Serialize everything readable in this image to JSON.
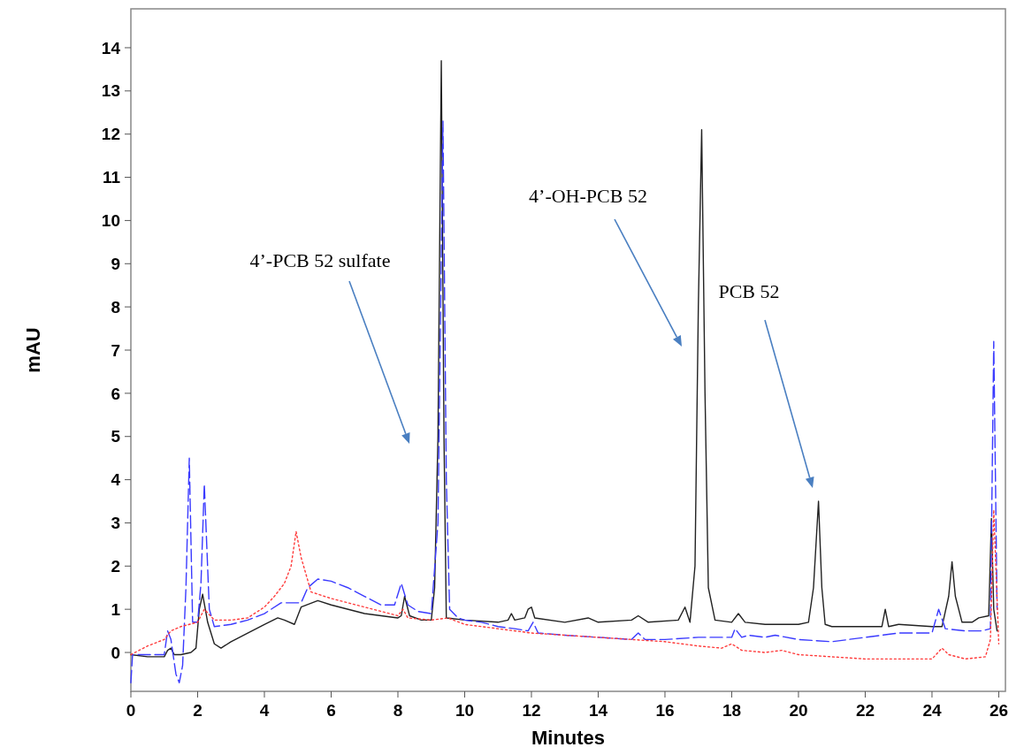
{
  "chart_data": {
    "type": "line",
    "xlabel": "Minutes",
    "ylabel": "mAU",
    "xlim": [
      0,
      26.2
    ],
    "ylim": [
      -0.9,
      14.9
    ],
    "xticks": [
      0,
      2,
      4,
      6,
      8,
      10,
      12,
      14,
      16,
      18,
      20,
      22,
      24,
      26
    ],
    "yticks": [
      0,
      1,
      2,
      3,
      4,
      5,
      6,
      7,
      8,
      9,
      10,
      11,
      12,
      13,
      14
    ],
    "grid": false,
    "annotations": [
      "4’-PCB 52 sulfate",
      "4’-OH-PCB 52",
      "PCB 52"
    ],
    "series": [
      {
        "color": "#222222",
        "line_style": "solid",
        "x": [
          0,
          0.5,
          1.0,
          1.1,
          1.2,
          1.3,
          1.5,
          1.8,
          1.95,
          2.05,
          2.15,
          2.3,
          2.5,
          2.7,
          3.0,
          3.5,
          4.0,
          4.4,
          4.6,
          4.9,
          5.1,
          5.6,
          6.0,
          7,
          8,
          8.1,
          8.2,
          8.35,
          8.7,
          9.0,
          9.1,
          9.2,
          9.3,
          9.38,
          9.45,
          10,
          11,
          11.3,
          11.4,
          11.5,
          11.8,
          11.9,
          12.0,
          12.1,
          13,
          13.7,
          14,
          15,
          15.2,
          15.5,
          16.4,
          16.6,
          16.75,
          16.9,
          17.0,
          17.1,
          17.2,
          17.3,
          17.5,
          18,
          18.2,
          18.4,
          19,
          20,
          20.3,
          20.45,
          20.6,
          20.7,
          20.8,
          21,
          22,
          22.5,
          22.6,
          22.7,
          23,
          24,
          24.3,
          24.5,
          24.6,
          24.7,
          24.9,
          25.2,
          25.4,
          25.7,
          25.78,
          25.85,
          25.95
        ],
        "values": [
          -0.05,
          -0.1,
          -0.1,
          0.05,
          0.1,
          -0.05,
          -0.05,
          0,
          0.1,
          1.0,
          1.35,
          0.7,
          0.2,
          0.1,
          0.25,
          0.45,
          0.65,
          0.8,
          0.75,
          0.65,
          1.05,
          1.2,
          1.1,
          0.9,
          0.8,
          0.85,
          1.3,
          0.85,
          0.75,
          0.75,
          1.5,
          5,
          13.7,
          5,
          0.8,
          0.75,
          0.7,
          0.75,
          0.9,
          0.75,
          0.8,
          1.0,
          1.05,
          0.8,
          0.7,
          0.8,
          0.7,
          0.75,
          0.85,
          0.7,
          0.75,
          1.05,
          0.7,
          2,
          8,
          12.1,
          6,
          1.5,
          0.75,
          0.7,
          0.9,
          0.7,
          0.65,
          0.65,
          0.7,
          1.5,
          3.5,
          1.5,
          0.65,
          0.6,
          0.6,
          0.6,
          1.0,
          0.6,
          0.65,
          0.6,
          0.6,
          1.3,
          2.1,
          1.3,
          0.7,
          0.7,
          0.8,
          0.85,
          3.1,
          1.0,
          0.5
        ]
      },
      {
        "color": "#3a3aff",
        "line_style": "dashed",
        "x": [
          0,
          0.05,
          0.5,
          1.0,
          1.1,
          1.2,
          1.35,
          1.45,
          1.55,
          1.65,
          1.75,
          1.85,
          2.0,
          2.1,
          2.2,
          2.35,
          2.5,
          3.0,
          3.5,
          4.0,
          4.5,
          4.9,
          5.1,
          5.3,
          5.6,
          6.0,
          6.5,
          7,
          7.5,
          7.9,
          8.1,
          8.3,
          8.6,
          9.0,
          9.2,
          9.35,
          9.45,
          9.55,
          9.8,
          10,
          10.5,
          11,
          11.5,
          11.9,
          12.05,
          12.2,
          13,
          14,
          15,
          15.2,
          15.4,
          16,
          17,
          18,
          18.1,
          18.3,
          18.5,
          19,
          19.3,
          20,
          21,
          22,
          23,
          24,
          24.2,
          24.4,
          25,
          25.5,
          25.75,
          25.85,
          25.95
        ],
        "values": [
          -0.7,
          -0.05,
          -0.05,
          -0.05,
          0.5,
          0.3,
          -0.5,
          -0.7,
          -0.3,
          1.5,
          4.5,
          0.7,
          0.7,
          1.6,
          3.9,
          1.0,
          0.6,
          0.65,
          0.75,
          0.9,
          1.15,
          1.15,
          1.15,
          1.5,
          1.7,
          1.65,
          1.5,
          1.3,
          1.1,
          1.1,
          1.6,
          1.1,
          0.95,
          0.9,
          3,
          12.3,
          4,
          1.0,
          0.8,
          0.75,
          0.7,
          0.6,
          0.55,
          0.5,
          0.7,
          0.45,
          0.4,
          0.35,
          0.3,
          0.45,
          0.3,
          0.3,
          0.35,
          0.35,
          0.55,
          0.35,
          0.4,
          0.35,
          0.4,
          0.3,
          0.25,
          0.35,
          0.45,
          0.45,
          1.0,
          0.55,
          0.5,
          0.5,
          0.55,
          7.2,
          1.0
        ]
      },
      {
        "color": "#ff3b3b",
        "line_style": "dotted",
        "x": [
          0,
          0.5,
          1.0,
          1.2,
          1.5,
          2.0,
          2.2,
          2.5,
          3.0,
          3.5,
          4.0,
          4.3,
          4.6,
          4.8,
          4.95,
          5.1,
          5.4,
          6,
          7,
          8,
          8.15,
          8.3,
          9,
          9.5,
          10,
          11,
          12,
          13,
          14,
          15,
          16,
          17,
          17.7,
          18.0,
          18.3,
          19,
          19.5,
          20,
          21,
          22,
          23,
          24,
          24.3,
          24.5,
          25,
          25.6,
          25.75,
          25.85,
          26
        ],
        "values": [
          -0.05,
          0.15,
          0.3,
          0.5,
          0.6,
          0.7,
          1.0,
          0.75,
          0.75,
          0.8,
          1.05,
          1.3,
          1.6,
          2.0,
          2.8,
          2.2,
          1.4,
          1.25,
          1.05,
          0.85,
          1.0,
          0.8,
          0.75,
          0.8,
          0.65,
          0.55,
          0.45,
          0.4,
          0.35,
          0.3,
          0.25,
          0.15,
          0.1,
          0.2,
          0.05,
          0,
          0.05,
          -0.05,
          -0.1,
          -0.15,
          -0.15,
          -0.15,
          0.1,
          -0.05,
          -0.15,
          -0.1,
          0.3,
          3.3,
          0.2
        ]
      }
    ]
  }
}
